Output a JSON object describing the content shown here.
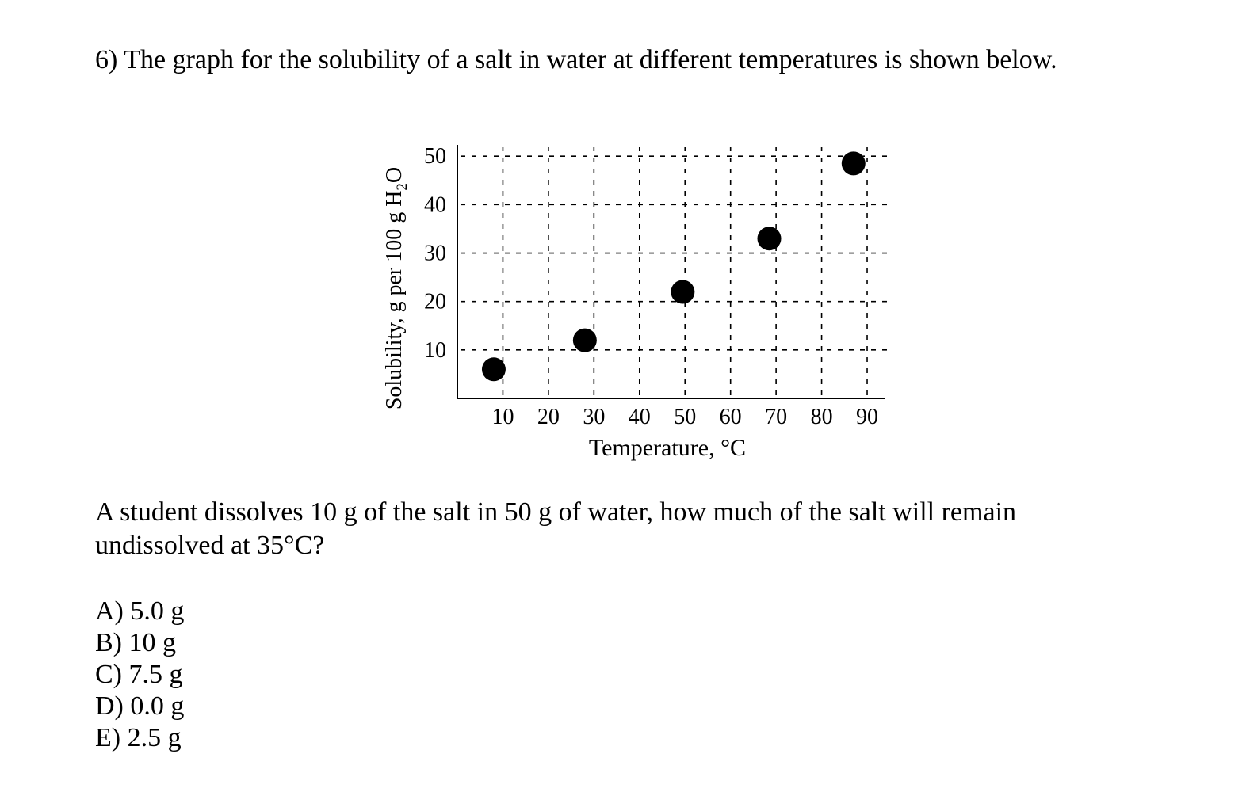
{
  "question": {
    "title": "6) The graph for the solubility of a salt in water at different temperatures is shown below.",
    "body": "A student dissolves 10 g of the salt in 50 g of water, how much of the salt will remain undissolved at 35°C?",
    "choices": [
      {
        "text": "A) 5.0 g"
      },
      {
        "text": "B) 10 g"
      },
      {
        "text": "C) 7.5 g"
      },
      {
        "text": "D) 0.0 g"
      },
      {
        "text": "E) 2.5 g"
      }
    ]
  },
  "chart_data": {
    "type": "scatter",
    "xlabel": "Temperature, °C",
    "ylabel_main": "Solubility, g per 100 g H",
    "ylabel_sub": "2",
    "ylabel_tail": "O",
    "x_ticks": [
      10,
      20,
      30,
      40,
      50,
      60,
      70,
      80,
      90
    ],
    "y_ticks": [
      10,
      20,
      30,
      40,
      50
    ],
    "xlim": [
      0,
      94
    ],
    "ylim": [
      0,
      52
    ],
    "grid": true,
    "points": [
      {
        "x": 8,
        "y": 6
      },
      {
        "x": 28,
        "y": 12
      },
      {
        "x": 49.5,
        "y": 22
      },
      {
        "x": 68.5,
        "y": 33
      },
      {
        "x": 87,
        "y": 48.5
      }
    ],
    "colors": {
      "marker": "#000000",
      "grid": "#000000",
      "axis": "#000000"
    }
  }
}
